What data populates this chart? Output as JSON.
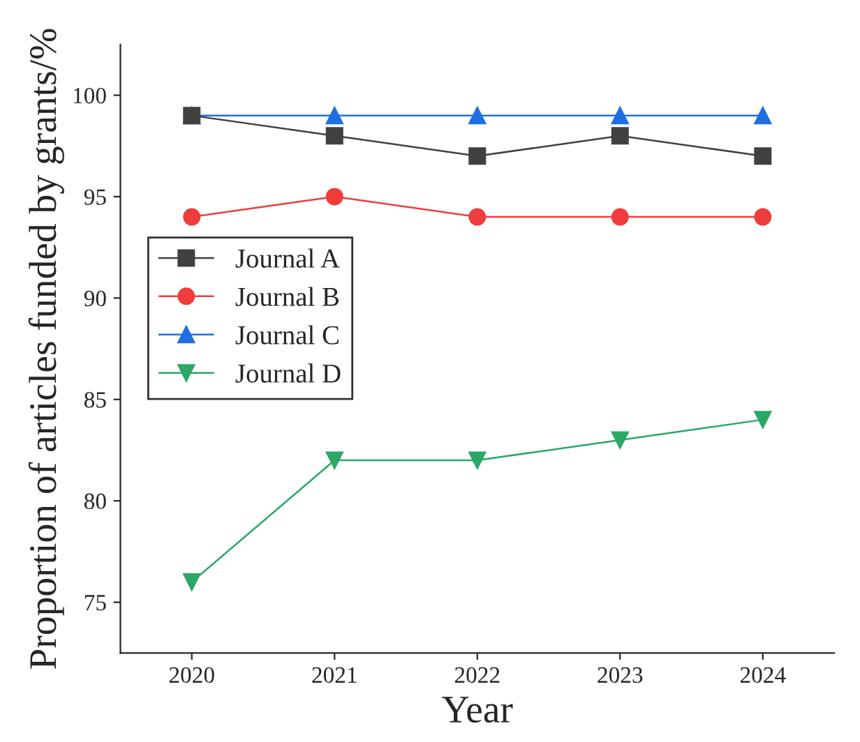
{
  "chart_data": {
    "type": "line",
    "xlabel": "Year",
    "ylabel": "Proportion of articles funded by grants/%",
    "x": [
      2020,
      2021,
      2022,
      2023,
      2024
    ],
    "series": [
      {
        "name": "Journal A",
        "color": "#404040",
        "marker": "square",
        "values": [
          99,
          98,
          97,
          98,
          97
        ]
      },
      {
        "name": "Journal B",
        "color": "#f03c3c",
        "marker": "circle",
        "values": [
          94,
          95,
          94,
          94,
          94
        ]
      },
      {
        "name": "Journal C",
        "color": "#1f6fe0",
        "marker": "triangle",
        "values": [
          99,
          99,
          99,
          99,
          99
        ]
      },
      {
        "name": "Journal D",
        "color": "#2aa866",
        "marker": "triangle_down",
        "values": [
          76,
          82,
          82,
          83,
          84
        ]
      }
    ],
    "xlim": [
      2019.5,
      2024.5
    ],
    "xticks": [
      2020,
      2021,
      2022,
      2023,
      2024
    ],
    "ylim": [
      72.5,
      102.5
    ],
    "yticks": [
      75,
      80,
      85,
      90,
      95,
      100
    ],
    "grid": false,
    "legend": "left",
    "line_style": "solid"
  }
}
